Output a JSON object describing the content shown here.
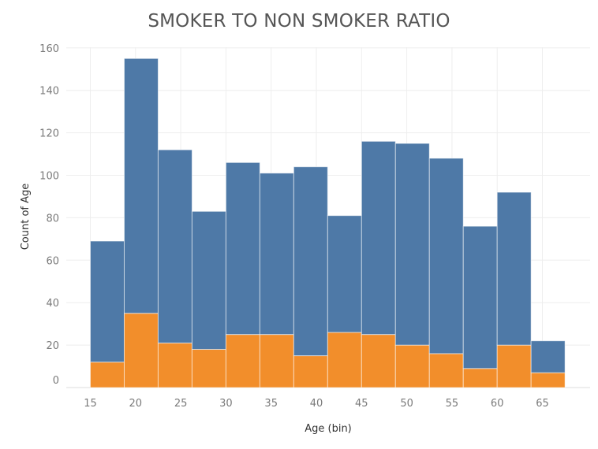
{
  "chart_data": {
    "type": "bar",
    "stacked": true,
    "title": "SMOKER TO NON SMOKER RATIO",
    "xlabel": "Age (bin)",
    "ylabel": "Count of Age",
    "x_tick_labels": [
      "15",
      "20",
      "25",
      "30",
      "35",
      "40",
      "45",
      "50",
      "55",
      "60",
      "65"
    ],
    "y_tick_labels": [
      "0",
      "20",
      "40",
      "60",
      "80",
      "100",
      "120",
      "140",
      "160"
    ],
    "xlim": [
      15,
      67.5
    ],
    "ylim": [
      0,
      160
    ],
    "bin_starts": [
      15,
      18.75,
      22.5,
      26.25,
      30,
      33.75,
      37.5,
      41.25,
      45,
      48.75,
      52.5,
      56.25,
      60,
      63.75
    ],
    "bin_width": 3.75,
    "grid": true,
    "series": [
      {
        "color": "#F28E2B",
        "values": [
          12,
          35,
          21,
          18,
          25,
          25,
          15,
          26,
          25,
          20,
          16,
          9,
          20,
          7
        ]
      },
      {
        "color": "#4E79A7",
        "values": [
          57,
          120,
          91,
          65,
          81,
          76,
          89,
          55,
          91,
          95,
          92,
          67,
          72,
          15
        ]
      }
    ]
  }
}
